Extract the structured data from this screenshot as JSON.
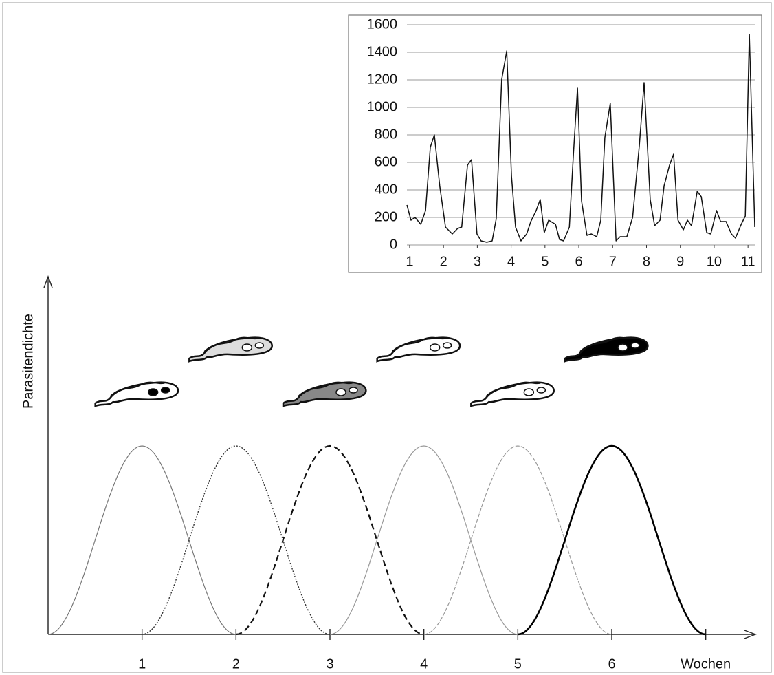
{
  "chart_data": [
    {
      "type": "line",
      "x": [
        0.92,
        1.04,
        1.16,
        1.33,
        1.47,
        1.61,
        1.73,
        1.89,
        2.06,
        2.26,
        2.42,
        2.54,
        2.71,
        2.83,
        2.99,
        3.11,
        3.28,
        3.44,
        3.56,
        3.72,
        3.87,
        4.01,
        4.13,
        4.29,
        4.46,
        4.58,
        4.74,
        4.86,
        4.98,
        5.11,
        5.31,
        5.43,
        5.55,
        5.72,
        5.84,
        5.96,
        6.08,
        6.24,
        6.37,
        6.53,
        6.65,
        6.77,
        6.93,
        7.1,
        7.22,
        7.42,
        7.59,
        7.79,
        7.93,
        8.11,
        8.24,
        8.4,
        8.52,
        8.68,
        8.8,
        8.93,
        9.09,
        9.21,
        9.33,
        9.5,
        9.62,
        9.78,
        9.9,
        10.07,
        10.19,
        10.35,
        10.51,
        10.63,
        10.8,
        10.92,
        11.04,
        11.2
      ],
      "series": [
        {
          "color": "#111111",
          "values": [
            290,
            180,
            200,
            150,
            250,
            710,
            800,
            430,
            130,
            80,
            120,
            130,
            580,
            620,
            80,
            30,
            20,
            30,
            190,
            1200,
            1410,
            500,
            130,
            30,
            80,
            170,
            250,
            330,
            90,
            180,
            150,
            40,
            30,
            130,
            660,
            1140,
            320,
            70,
            80,
            60,
            180,
            780,
            1030,
            30,
            60,
            60,
            200,
            730,
            1180,
            330,
            140,
            180,
            430,
            580,
            660,
            180,
            110,
            180,
            140,
            390,
            350,
            90,
            80,
            250,
            170,
            170,
            80,
            50,
            150,
            210,
            1530,
            130
          ]
        }
      ],
      "xlim": [
        0.92,
        11.2
      ],
      "xticks": [
        1,
        2,
        3,
        4,
        5,
        6,
        7,
        8,
        9,
        10,
        11
      ],
      "ylim": [
        0,
        1600
      ],
      "yticks": [
        0,
        200,
        400,
        600,
        800,
        1000,
        1200,
        1400,
        1600
      ],
      "grid": true
    },
    {
      "type": "bell",
      "y_label": "Parasitendichte",
      "xlim": [
        0,
        7.5
      ],
      "xticks": [
        1,
        2,
        3,
        4,
        5,
        6,
        {
          "value": 7,
          "label": "Wochen"
        }
      ],
      "series": [
        {
          "peak": 1,
          "color": "#777777",
          "dash": "none",
          "width": 1.2
        },
        {
          "peak": 2,
          "color": "#333333",
          "dash": "2 2",
          "width": 1.4
        },
        {
          "peak": 3,
          "color": "#111111",
          "dash": "9 5",
          "width": 2.2
        },
        {
          "peak": 4,
          "color": "#999999",
          "dash": "none",
          "width": 1.2
        },
        {
          "peak": 5,
          "color": "#999999",
          "dash": "6 2",
          "width": 1.2
        },
        {
          "peak": 6,
          "color": "#000000",
          "dash": "none",
          "width": 2.6
        }
      ]
    }
  ]
}
